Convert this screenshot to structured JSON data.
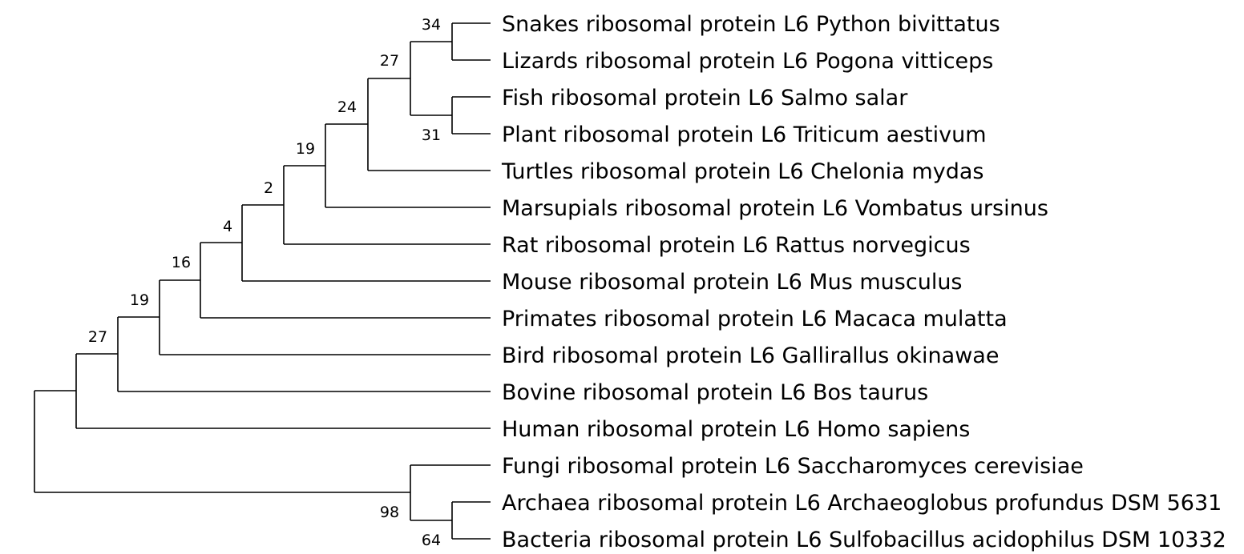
{
  "tree": {
    "leaves": [
      {
        "id": "snakes",
        "label": "Snakes ribosomal protein L6 Python bivittatus"
      },
      {
        "id": "lizards",
        "label": "Lizards ribosomal protein L6 Pogona vitticeps"
      },
      {
        "id": "fish",
        "label": "Fish ribosomal protein L6 Salmo salar"
      },
      {
        "id": "plant",
        "label": "Plant ribosomal protein L6 Triticum aestivum"
      },
      {
        "id": "turtles",
        "label": "Turtles ribosomal protein L6 Chelonia mydas"
      },
      {
        "id": "marsupials",
        "label": "Marsupials ribosomal protein L6 Vombatus ursinus"
      },
      {
        "id": "rat",
        "label": "Rat ribosomal protein L6 Rattus norvegicus"
      },
      {
        "id": "mouse",
        "label": "Mouse ribosomal protein L6 Mus musculus"
      },
      {
        "id": "primates",
        "label": "Primates ribosomal protein L6 Macaca mulatta"
      },
      {
        "id": "bird",
        "label": "Bird ribosomal protein L6 Gallirallus okinawae"
      },
      {
        "id": "bovine",
        "label": "Bovine ribosomal protein L6 Bos taurus"
      },
      {
        "id": "human",
        "label": "Human ribosomal protein L6 Homo sapiens"
      },
      {
        "id": "fungi",
        "label": "Fungi ribosomal protein L6 Saccharomyces cerevisiae"
      },
      {
        "id": "archaea",
        "label": "Archaea ribosomal protein L6 Archaeoglobus profundus DSM 5631"
      },
      {
        "id": "bacteria",
        "label": "Bacteria ribosomal protein L6 Sulfobacillus acidophilus DSM 10332"
      }
    ],
    "support_values": {
      "snakes_lizards": "34",
      "fish_plant": "31",
      "snake_lizard_fish_plant": "27",
      "with_turtles": "24",
      "with_marsupials": "19",
      "with_rat": "2",
      "with_mouse": "4",
      "with_primates": "16",
      "with_bird": "19",
      "with_bovine": "27",
      "archaea_bacteria": "64",
      "fungi_archaea_bacteria": "98"
    }
  }
}
